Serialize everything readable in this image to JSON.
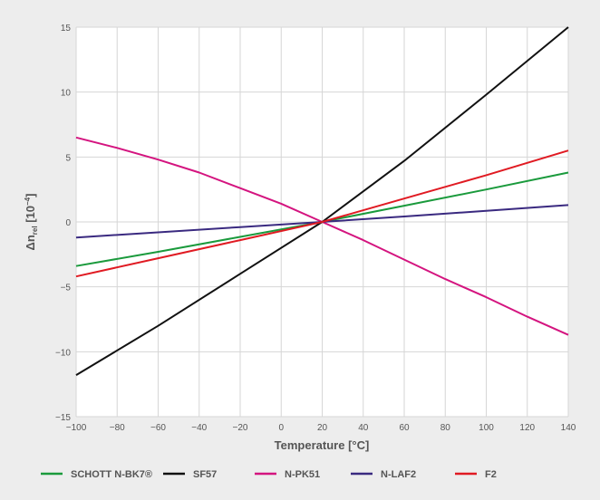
{
  "chart_data": {
    "type": "line",
    "title": "",
    "xlabel": "Temperature [°C]",
    "ylabel": {
      "base": "Δn",
      "subscript": "rel",
      "unit": " [10",
      "superscript": "−4",
      "close": "]"
    },
    "xlim": [
      -100,
      140
    ],
    "ylim": [
      -15,
      15
    ],
    "x_ticks": [
      -100,
      -80,
      -60,
      -40,
      -20,
      0,
      20,
      40,
      60,
      80,
      100,
      120,
      140
    ],
    "x_tick_labels": [
      "−100",
      "−80",
      "−60",
      "−40",
      "−20",
      "0",
      "20",
      "40",
      "60",
      "80",
      "100",
      "120",
      "140"
    ],
    "y_ticks": [
      -15,
      -10,
      -5,
      0,
      5,
      10,
      15
    ],
    "y_tick_labels": [
      "−15",
      "−10",
      "−5",
      "0",
      "5",
      "10",
      "15"
    ],
    "grid": true,
    "legend_position": "bottom",
    "series": [
      {
        "name": "SCHOTT N-BK7®",
        "color": "#1a9a3c",
        "x": [
          -100,
          -60,
          -20,
          20,
          60,
          100,
          140
        ],
        "y": [
          -3.4,
          -2.3,
          -1.15,
          0,
          1.25,
          2.5,
          3.8
        ]
      },
      {
        "name": "SF57",
        "color": "#111111",
        "x": [
          -100,
          -60,
          -20,
          20,
          60,
          100,
          140
        ],
        "y": [
          -11.8,
          -8.0,
          -4.0,
          0,
          4.7,
          9.8,
          15.0
        ]
      },
      {
        "name": "N-PK51",
        "color": "#d4147f",
        "x": [
          -100,
          -80,
          -60,
          -40,
          -20,
          0,
          20,
          40,
          60,
          80,
          100,
          120,
          140
        ],
        "y": [
          6.5,
          5.7,
          4.8,
          3.8,
          2.6,
          1.4,
          0,
          -1.4,
          -2.9,
          -4.4,
          -5.8,
          -7.3,
          -8.7
        ]
      },
      {
        "name": "N-LAF2",
        "color": "#3a2a80",
        "x": [
          -100,
          -60,
          -20,
          20,
          60,
          100,
          140
        ],
        "y": [
          -1.2,
          -0.8,
          -0.4,
          0,
          0.42,
          0.85,
          1.3
        ]
      },
      {
        "name": "F2",
        "color": "#e01a22",
        "x": [
          -100,
          -60,
          -20,
          20,
          60,
          100,
          140
        ],
        "y": [
          -4.2,
          -2.8,
          -1.4,
          0,
          1.8,
          3.6,
          5.5
        ]
      }
    ]
  }
}
